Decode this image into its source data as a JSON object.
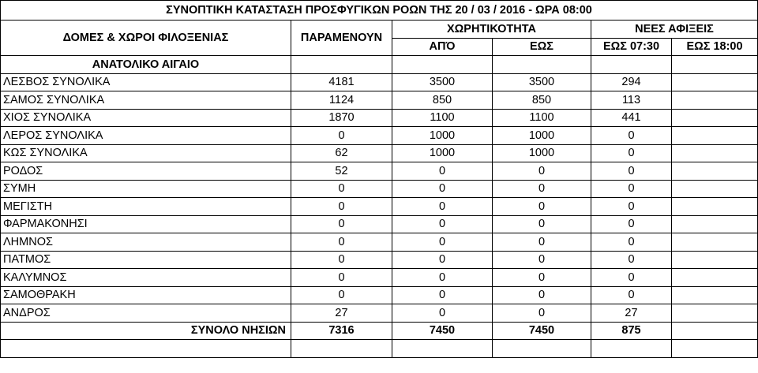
{
  "title": "ΣΥΝΟΠΤΙΚΗ ΚΑΤΑΣΤΑΣΗ ΠΡΟΣΦΥΓΙΚΩΝ ΡΟΩΝ ΤΗΣ 20 / 03 / 2016 - ΩΡΑ 08:00",
  "headers": {
    "structures": "ΔΟΜΕΣ & ΧΩΡΟΙ ΦΙΛΟΞΕΝΙΑΣ",
    "remaining": "ΠΑΡΑΜΕΝΟΥΝ",
    "capacity": "ΧΩΡΗΤΙΚΟΤΗΤΑ",
    "new_arrivals": "ΝΕΕΣ ΑΦΙΞΕΙΣ",
    "from": "ΑΠΌ",
    "to": "ΕΩΣ",
    "until_0730": "ΕΩΣ 07:30",
    "until_1800": "ΕΩΣ 18:00"
  },
  "section": "ΑΝΑΤΟΛΙΚΟ ΑΙΓΑΙΟ",
  "rows": [
    {
      "name": "ΛΕΣΒΟΣ ΣΥΝΟΛΙΚΑ",
      "remaining": "4181",
      "from": "3500",
      "to": "3500",
      "until_0730": "294",
      "until_1800": ""
    },
    {
      "name": "ΣΑΜΟΣ ΣΥΝΟΛΙΚΑ",
      "remaining": "1124",
      "from": "850",
      "to": "850",
      "until_0730": "113",
      "until_1800": ""
    },
    {
      "name": "ΧΙΟΣ ΣΥΝΟΛΙΚΑ",
      "remaining": "1870",
      "from": "1100",
      "to": "1100",
      "until_0730": "441",
      "until_1800": ""
    },
    {
      "name": "ΛΕΡΟΣ ΣΥΝΟΛΙΚΑ",
      "remaining": "0",
      "from": "1000",
      "to": "1000",
      "until_0730": "0",
      "until_1800": ""
    },
    {
      "name": "ΚΩΣ ΣΥΝΟΛΙΚΑ",
      "remaining": "62",
      "from": "1000",
      "to": "1000",
      "until_0730": "0",
      "until_1800": ""
    },
    {
      "name": "ΡΟΔΟΣ",
      "remaining": "52",
      "from": "0",
      "to": "0",
      "until_0730": "0",
      "until_1800": ""
    },
    {
      "name": "ΣΥΜΗ",
      "remaining": "0",
      "from": "0",
      "to": "0",
      "until_0730": "0",
      "until_1800": ""
    },
    {
      "name": "ΜΕΓΙΣΤΗ",
      "remaining": "0",
      "from": "0",
      "to": "0",
      "until_0730": "0",
      "until_1800": ""
    },
    {
      "name": "ΦΑΡΜΑΚΟΝΗΣΙ",
      "remaining": "0",
      "from": "0",
      "to": "0",
      "until_0730": "0",
      "until_1800": ""
    },
    {
      "name": "ΛΗΜΝΟΣ",
      "remaining": "0",
      "from": "0",
      "to": "0",
      "until_0730": "0",
      "until_1800": ""
    },
    {
      "name": "ΠΑΤΜΟΣ",
      "remaining": "0",
      "from": "0",
      "to": "0",
      "until_0730": "0",
      "until_1800": ""
    },
    {
      "name": "ΚΑΛΥΜΝΟΣ",
      "remaining": "0",
      "from": "0",
      "to": "0",
      "until_0730": "0",
      "until_1800": ""
    },
    {
      "name": "ΣΑΜΟΘΡΑΚΗ",
      "remaining": "0",
      "from": "0",
      "to": "0",
      "until_0730": "0",
      "until_1800": ""
    },
    {
      "name": "ΑΝΔΡΟΣ",
      "remaining": "27",
      "from": "0",
      "to": "0",
      "until_0730": "27",
      "until_1800": ""
    }
  ],
  "total": {
    "label": "ΣΥΝΟΛΟ ΝΗΣΙΩΝ",
    "remaining": "7316",
    "from": "7450",
    "to": "7450",
    "until_0730": "875",
    "until_1800": ""
  }
}
